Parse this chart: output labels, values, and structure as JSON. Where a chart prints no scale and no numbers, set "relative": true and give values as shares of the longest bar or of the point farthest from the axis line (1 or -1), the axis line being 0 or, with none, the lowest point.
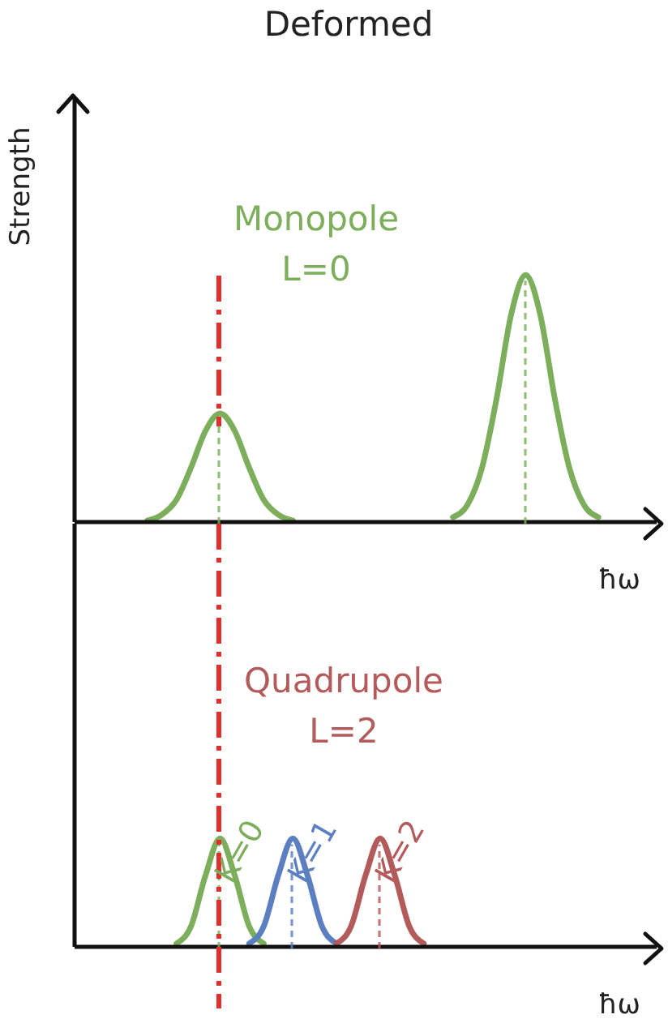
{
  "chart_data": [
    {
      "type": "line",
      "title": "Deformed",
      "ylabel": "Strength",
      "xlabel": "ħω",
      "relative": true,
      "marker": "none",
      "annotations": [
        "Monopole L=0"
      ],
      "categories": [
        null,
        null,
        null,
        null,
        null,
        null,
        null,
        null,
        null,
        null,
        null,
        null,
        null,
        null,
        null,
        null,
        null,
        null,
        null,
        null,
        null,
        null,
        null,
        null,
        null,
        null,
        null,
        null,
        null,
        null,
        null,
        null,
        null,
        null,
        null,
        null,
        null,
        null,
        null,
        null,
        null
      ],
      "series": [
        {
          "color": "#7cae5c",
          "values": [
            null,
            null,
            null,
            null,
            null,
            0.006,
            0.03,
            0.09,
            0.22,
            0.37,
            0.44,
            0.37,
            0.22,
            0.09,
            0.03,
            0.006,
            null,
            null,
            null,
            null,
            null,
            null,
            null,
            null,
            null,
            null,
            null,
            null,
            null,
            null,
            null,
            null,
            null,
            null,
            null,
            null,
            null,
            null,
            null,
            null,
            null
          ]
        },
        {
          "color": "#7cae5c",
          "values": [
            null,
            null,
            null,
            null,
            null,
            null,
            null,
            null,
            null,
            null,
            null,
            null,
            null,
            null,
            null,
            null,
            null,
            null,
            null,
            null,
            null,
            null,
            null,
            null,
            null,
            null,
            0.02,
            0.07,
            0.22,
            0.5,
            0.84,
            1,
            0.84,
            0.5,
            0.22,
            0.07,
            0.02,
            null,
            null,
            null,
            null
          ]
        }
      ]
    },
    {
      "type": "line",
      "xlabel": "ħω",
      "relative": true,
      "marker": "none",
      "annotations": [
        "Quadrupole L=2"
      ],
      "categories": [
        null,
        null,
        null,
        null,
        null,
        null,
        null,
        null,
        null,
        null,
        null,
        null,
        null,
        null,
        null,
        null,
        null,
        null,
        null,
        null,
        null,
        null,
        null,
        null,
        null,
        null,
        null,
        null,
        null,
        null,
        null,
        null,
        null,
        null,
        null,
        null,
        null,
        null,
        null,
        null,
        null
      ],
      "series": [
        {
          "name": "K=0",
          "color": "#7cae5c",
          "values": [
            null,
            null,
            null,
            null,
            null,
            null,
            null,
            0.03,
            0.19,
            0.66,
            1,
            0.66,
            0.19,
            0.03,
            null,
            null,
            null,
            null,
            null,
            null,
            null,
            null,
            null,
            null,
            null,
            null,
            null,
            null,
            null,
            null,
            null,
            null,
            null,
            null,
            null,
            null,
            null,
            null,
            null,
            null,
            null
          ]
        },
        {
          "name": "K=1",
          "color": "#5b7fc0",
          "values": [
            null,
            null,
            null,
            null,
            null,
            null,
            null,
            null,
            null,
            null,
            null,
            null,
            0.03,
            0.19,
            0.66,
            1,
            0.66,
            0.19,
            0.03,
            null,
            null,
            null,
            null,
            null,
            null,
            null,
            null,
            null,
            null,
            null,
            null,
            null,
            null,
            null,
            null,
            null,
            null,
            null,
            null,
            null,
            null
          ]
        },
        {
          "name": "K=2",
          "color": "#b35a5a",
          "values": [
            null,
            null,
            null,
            null,
            null,
            null,
            null,
            null,
            null,
            null,
            null,
            null,
            null,
            null,
            null,
            null,
            null,
            null,
            0.03,
            0.19,
            0.66,
            1,
            0.66,
            0.19,
            0.03,
            null,
            null,
            null,
            null,
            null,
            null,
            null,
            null,
            null,
            null,
            null,
            null,
            null,
            null,
            null,
            null
          ]
        }
      ]
    }
  ]
}
